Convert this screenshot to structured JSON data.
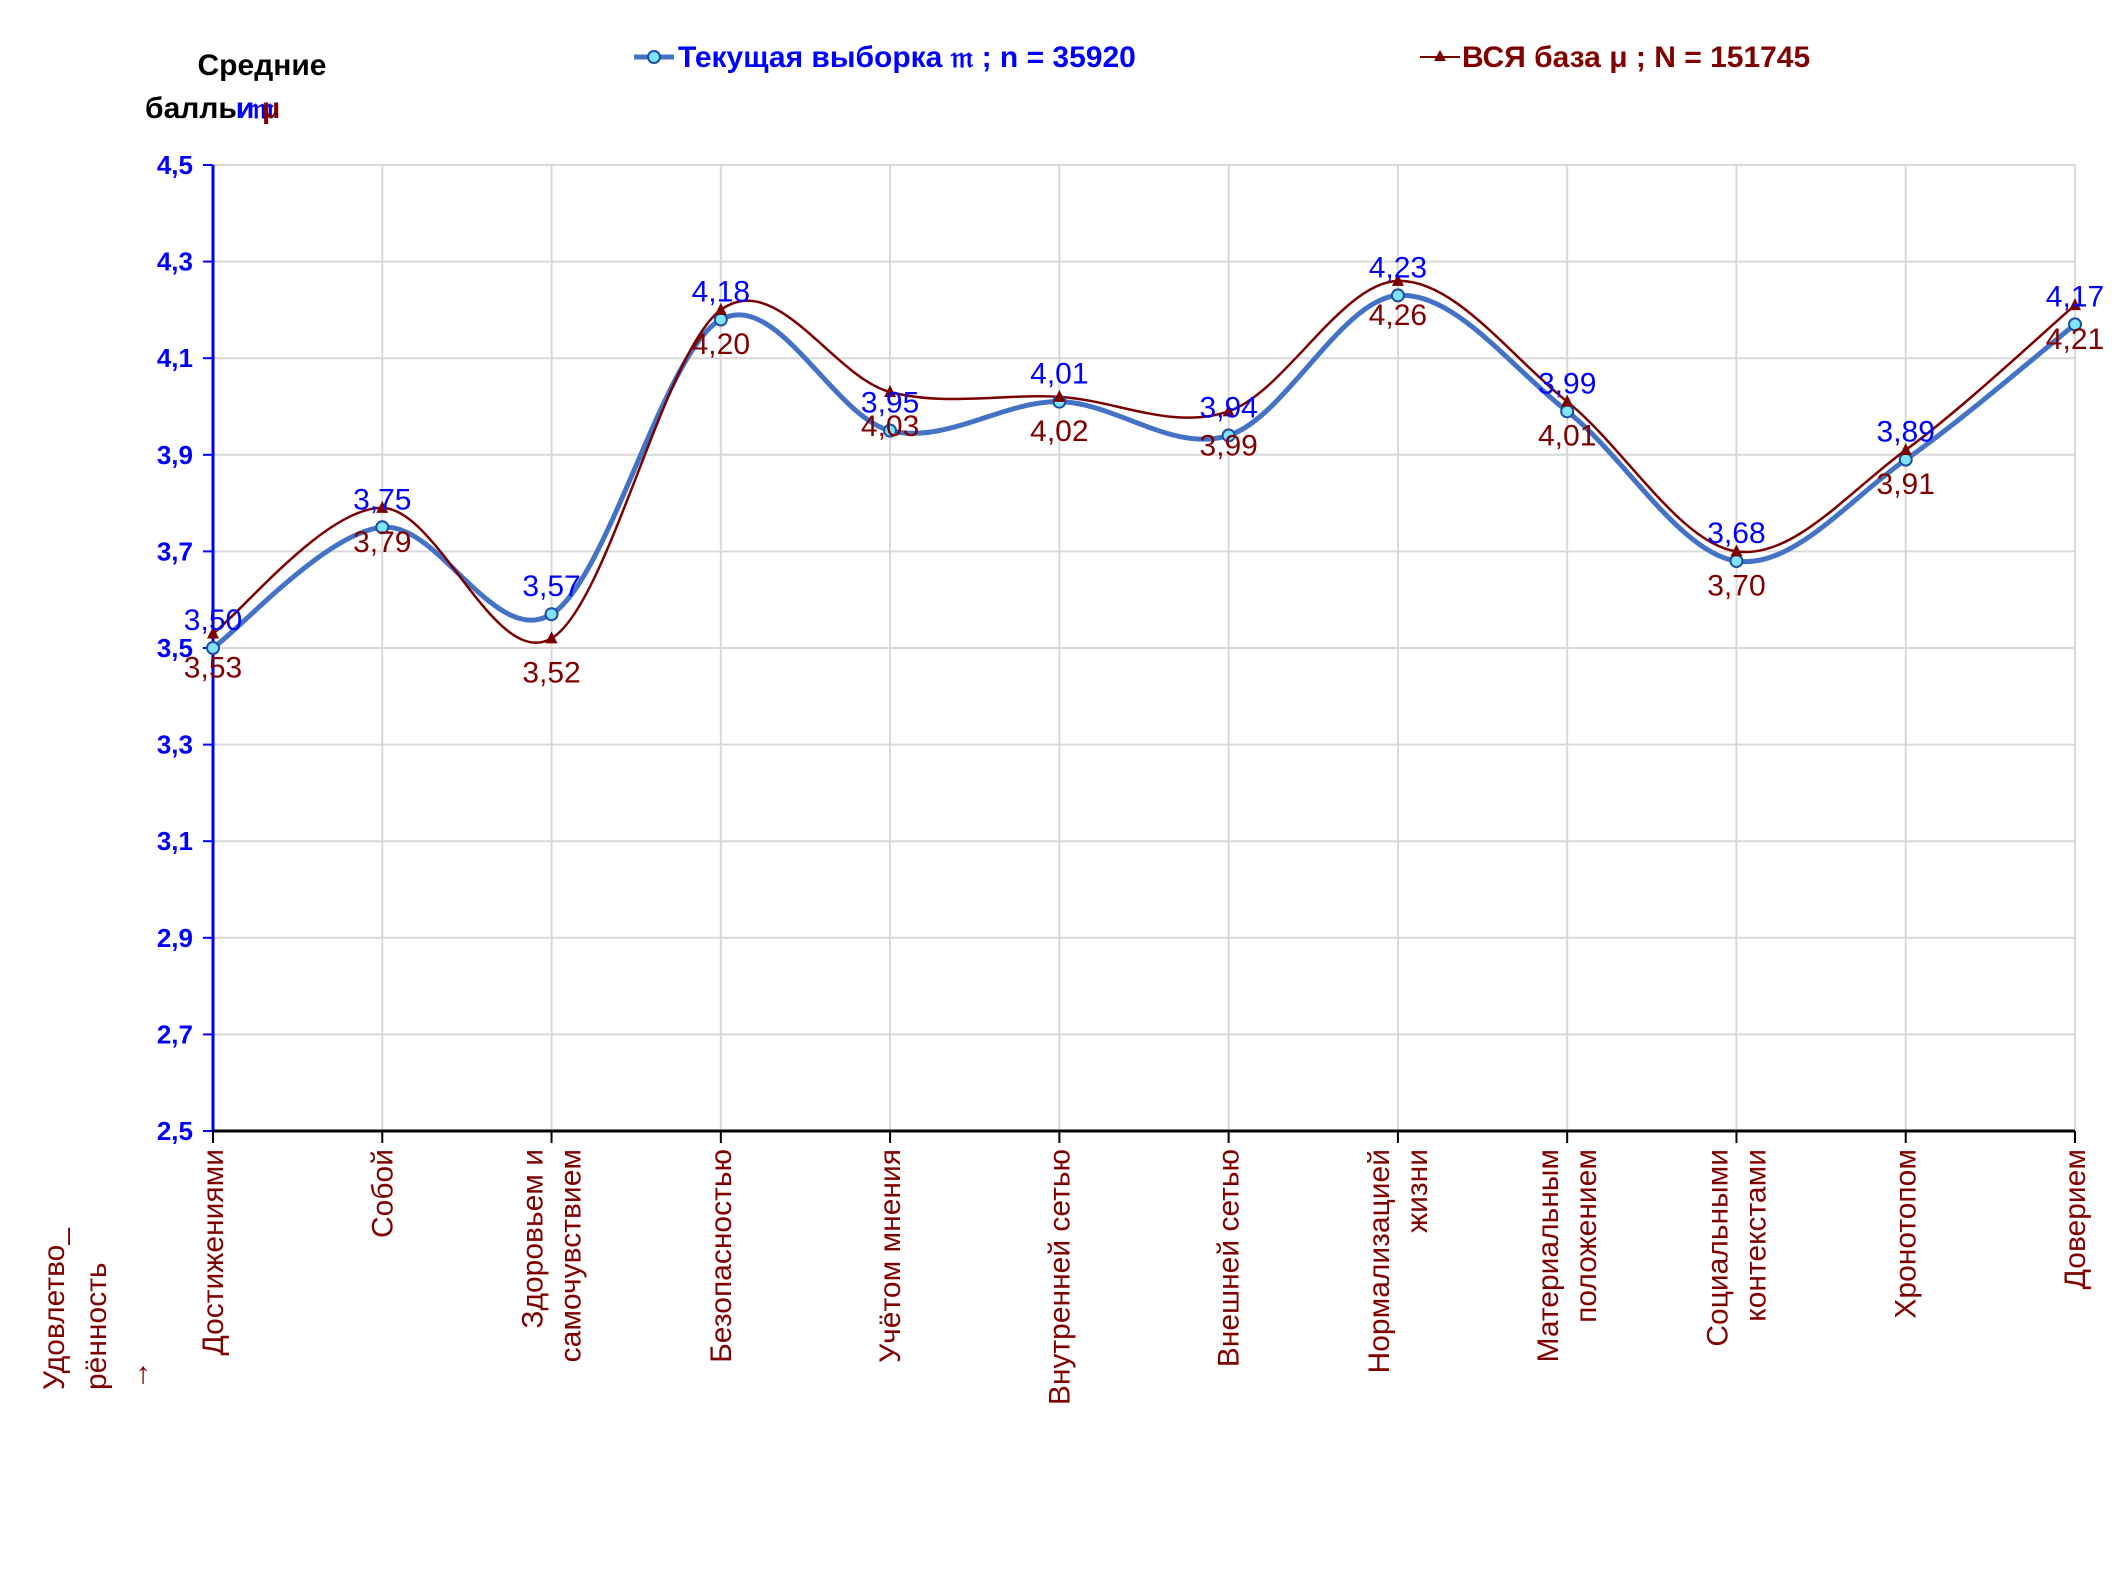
{
  "chart_data": {
    "type": "line",
    "ylabel_lines": [
      "Средние",
      "баллы"
    ],
    "ylabel_symbols": [
      "𝔪",
      "и",
      "μ"
    ],
    "xlabel_lines": [
      "Удовлетво_",
      "рённость",
      "→"
    ],
    "ylim": [
      2.5,
      4.5
    ],
    "yticks": [
      "2,5",
      "2,7",
      "2,9",
      "3,1",
      "3,3",
      "3,5",
      "3,7",
      "3,9",
      "4,1",
      "4,3",
      "4,5"
    ],
    "ytick_values": [
      2.5,
      2.7,
      2.9,
      3.1,
      3.3,
      3.5,
      3.7,
      3.9,
      4.1,
      4.3,
      4.5
    ],
    "grid": true,
    "legend_position": "top",
    "categories": [
      [
        "Достижениями"
      ],
      [
        "Собой"
      ],
      [
        "Здоровьем и",
        "самочувствием"
      ],
      [
        "Безопасностью"
      ],
      [
        "Учётом мнения"
      ],
      [
        "Внутренней сетью"
      ],
      [
        "Внешней сетью"
      ],
      [
        "Нормализацией",
        "жизни"
      ],
      [
        "Материальным",
        "положением"
      ],
      [
        "Социальными",
        "контекстами"
      ],
      [
        "Хронотопом"
      ],
      [
        "Доверием"
      ]
    ],
    "series": [
      {
        "name": "Текущая выборка 𝔪 ; n = 35920",
        "color": "#4472C4",
        "label_color": "#0000FF",
        "marker": "circle",
        "values": [
          3.5,
          3.75,
          3.57,
          4.18,
          3.95,
          4.01,
          3.94,
          4.23,
          3.99,
          3.68,
          3.89,
          4.17
        ],
        "labels": [
          "3,50",
          "3,75",
          "3,57",
          "4,18",
          "3,95",
          "4,01",
          "3,94",
          "4,23",
          "3,99",
          "3,68",
          "3,89",
          "4,17"
        ]
      },
      {
        "name": "ВСЯ база μ ; N = 151745",
        "color": "#7B0000",
        "label_color": "#800000",
        "marker": "triangle",
        "values": [
          3.53,
          3.79,
          3.52,
          4.2,
          4.03,
          4.02,
          3.99,
          4.26,
          4.01,
          3.7,
          3.91,
          4.21
        ],
        "labels": [
          "3,53",
          "3,79",
          "3,52",
          "4,20",
          "4,03",
          "4,02",
          "3,99",
          "4,26",
          "4,01",
          "3,70",
          "3,91",
          "4,21"
        ]
      }
    ]
  },
  "colors": {
    "axis_y": "#0000FF",
    "axis_x": "#000000",
    "grid": "#D9D9D9",
    "category_text": "#800000",
    "tick_text": "#0000FF"
  }
}
